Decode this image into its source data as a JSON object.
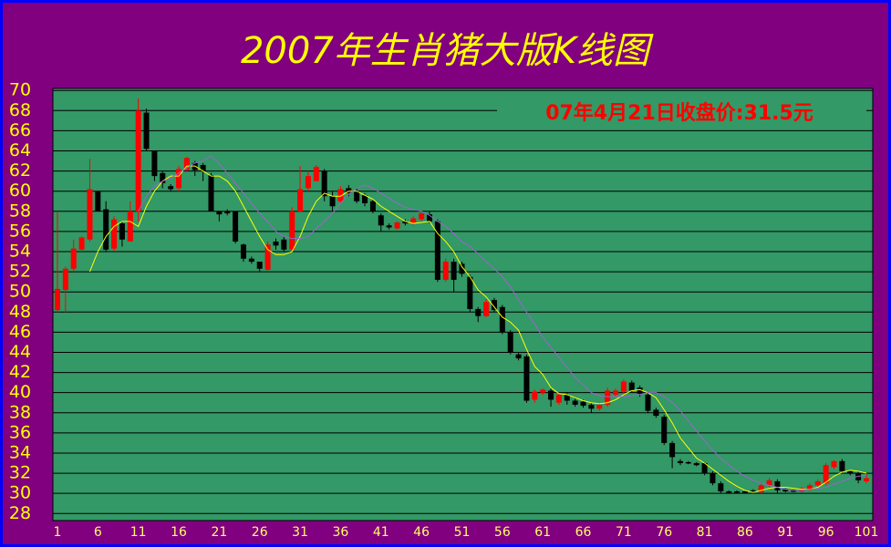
{
  "chart_data": {
    "type": "candlestick",
    "title": "2007年生肖猪大版K线图",
    "annotation": "07年4月21日收盘价:31.5元",
    "up_color": "#ff0000",
    "down_color": "#000000",
    "grid": true,
    "xlim": [
      0.44,
      101.79
    ],
    "xticks": [
      1,
      6,
      11,
      16,
      21,
      26,
      31,
      36,
      41,
      46,
      51,
      56,
      61,
      66,
      71,
      76,
      81,
      86,
      91,
      96,
      101
    ],
    "ylim": [
      27.3,
      70.2
    ],
    "yticks": [
      70,
      68,
      66,
      64,
      62,
      60,
      58,
      56,
      54,
      52,
      50,
      48,
      46,
      44,
      42,
      40,
      38,
      36,
      34,
      32,
      30,
      28
    ],
    "x": [
      1,
      2,
      3,
      4,
      5,
      6,
      7,
      8,
      9,
      10,
      11,
      12,
      13,
      14,
      15,
      16,
      17,
      18,
      19,
      20,
      21,
      22,
      23,
      24,
      25,
      26,
      27,
      28,
      29,
      30,
      31,
      32,
      33,
      34,
      35,
      36,
      37,
      38,
      39,
      40,
      41,
      42,
      43,
      44,
      45,
      46,
      47,
      48,
      49,
      50,
      51,
      52,
      53,
      54,
      55,
      56,
      57,
      58,
      59,
      60,
      61,
      62,
      63,
      64,
      65,
      66,
      67,
      68,
      69,
      70,
      71,
      72,
      73,
      74,
      75,
      76,
      77,
      78,
      79,
      80,
      81,
      82,
      83,
      84,
      85,
      86,
      87,
      88,
      89,
      90,
      91,
      92,
      93,
      94,
      95,
      96,
      97,
      98,
      99,
      100,
      101
    ],
    "open": [
      48.2,
      50.2,
      52.3,
      54.2,
      55.2,
      60,
      58.2,
      54.3,
      56.8,
      55,
      58,
      67.8,
      64,
      61.8,
      60.5,
      60.3,
      62.1,
      62.8,
      62.6,
      61.6,
      58,
      58,
      58,
      54.7,
      53.3,
      53,
      52.2,
      55,
      55.2,
      54.2,
      58,
      60.3,
      61,
      62,
      59.5,
      59,
      60.3,
      60,
      59.6,
      59,
      57.6,
      56.6,
      56.3,
      57,
      56.8,
      57.2,
      57.7,
      57,
      51.2,
      53,
      52.8,
      51.5,
      48.3,
      47.6,
      49.2,
      48.5,
      46,
      43.8,
      43.6,
      39.3,
      40,
      40.2,
      39,
      39.8,
      39.2,
      39.1,
      38.8,
      38.4,
      38.8,
      39.8,
      40.1,
      41,
      40.5,
      39.8,
      38.3,
      37.6,
      35,
      33.2,
      33.1,
      33,
      33,
      32,
      31,
      30.2,
      30.2,
      30.2,
      30.3,
      30.1,
      30.8,
      31.2,
      30.4,
      30.3,
      30.2,
      30.4,
      30.8,
      31,
      32.6,
      33.2,
      32.2,
      32,
      31.2
    ],
    "high": [
      58,
      52.5,
      55.2,
      55.5,
      63.2,
      60,
      59,
      57.5,
      57,
      59,
      69.2,
      68.2,
      64,
      62,
      60.7,
      62.5,
      63.4,
      63,
      62.8,
      61.8,
      58,
      58.2,
      58,
      54.8,
      53.5,
      53,
      55,
      55.3,
      55.5,
      58.4,
      62.5,
      62,
      62.6,
      62.2,
      60,
      60.5,
      60.6,
      60.3,
      59.8,
      59.2,
      57.8,
      56.8,
      57,
      57.2,
      57.5,
      58,
      58,
      57.2,
      53.3,
      53.3,
      53,
      51.7,
      48.5,
      49.3,
      49.4,
      48.7,
      46.2,
      44,
      43.8,
      40.3,
      40.4,
      40.4,
      40,
      40,
      39.4,
      39.3,
      39,
      39,
      40.5,
      40.4,
      41.3,
      41.2,
      40.7,
      40,
      38.5,
      37.8,
      35.2,
      33.4,
      33.2,
      33.1,
      33.1,
      32.2,
      31.2,
      30.3,
      30.3,
      30.3,
      30.4,
      31,
      31.5,
      31.4,
      30.5,
      30.4,
      30.6,
      31,
      31.4,
      33,
      33.3,
      33.4,
      32.3,
      32.2,
      32
    ],
    "low": [
      48,
      48,
      52,
      54,
      55,
      58,
      54,
      54,
      54.5,
      55,
      57,
      64,
      61,
      60.3,
      60,
      60,
      62,
      61.5,
      61,
      58,
      57,
      57.6,
      54.8,
      53,
      52.8,
      52,
      52,
      54.2,
      54,
      54,
      58,
      60,
      61,
      59,
      58,
      58.8,
      59.5,
      58.8,
      58.5,
      57.8,
      56,
      56.2,
      56.2,
      56.6,
      56.6,
      57,
      56.8,
      51,
      51,
      50,
      51.5,
      48,
      47,
      47.5,
      48,
      45.8,
      43.8,
      43.2,
      39,
      39,
      39.8,
      38.6,
      38.8,
      38.8,
      38.6,
      38.5,
      38,
      38.2,
      38.6,
      39.6,
      39.8,
      40,
      39.6,
      38,
      37.5,
      34.8,
      32.5,
      32.8,
      32.9,
      32.7,
      31.8,
      30.8,
      30,
      30,
      30,
      30,
      30,
      30,
      30.6,
      30,
      30.1,
      30.1,
      30.1,
      30.2,
      30.6,
      30.8,
      32.4,
      32,
      31.8,
      31,
      31
    ],
    "close": [
      50.3,
      52.3,
      54.3,
      55.4,
      60.2,
      58,
      54.2,
      57.2,
      55.2,
      58,
      68,
      64.2,
      61.5,
      60.8,
      60.2,
      62.2,
      63.3,
      62.1,
      62,
      58,
      57.7,
      57.8,
      55,
      53.3,
      53,
      52.3,
      54.7,
      54.6,
      54.2,
      58,
      60.2,
      61.5,
      62.4,
      59.5,
      58.5,
      60.2,
      59.8,
      59,
      58.8,
      58,
      56.6,
      56.4,
      56.9,
      56.8,
      57.3,
      57.8,
      57,
      51.2,
      53,
      51.2,
      51.8,
      48.3,
      47.6,
      49,
      48.2,
      46,
      44,
      43.4,
      39.2,
      40.1,
      40.3,
      39.3,
      39.8,
      39.2,
      38.8,
      38.7,
      38.4,
      38.8,
      40.2,
      40.2,
      41.1,
      40.2,
      39.9,
      38.2,
      37.7,
      35,
      33.6,
      33,
      33,
      32.8,
      32,
      31,
      30.2,
      30.1,
      30.1,
      30.1,
      30.1,
      30.8,
      31.3,
      30.3,
      30.2,
      30.2,
      30.5,
      30.8,
      31.2,
      32.8,
      33.2,
      32.2,
      32,
      31.3,
      31.5
    ],
    "series": [
      {
        "color": "#ffff00",
        "values": [
          null,
          null,
          null,
          null,
          52,
          54,
          55.5,
          56.5,
          57,
          57,
          56.5,
          58.5,
          60,
          61,
          61.5,
          61.5,
          62.5,
          62.5,
          62,
          61.5,
          61.5,
          61,
          60,
          58.5,
          57,
          55.5,
          54.2,
          53.7,
          53.7,
          54,
          55.5,
          57.5,
          59,
          59.8,
          59.5,
          59.5,
          60,
          60,
          59.6,
          59.2,
          58.5,
          58,
          57.5,
          57,
          56.8,
          56.9,
          57,
          55.8,
          55,
          54,
          52.5,
          51.5,
          50.2,
          49.5,
          48.5,
          47.5,
          47,
          46.2,
          44.3,
          42.6,
          41.8,
          40.5,
          39.9,
          39.8,
          39.5,
          39.2,
          39,
          38.9,
          39,
          39.3,
          39.8,
          40.2,
          40.3,
          40,
          39.5,
          38.3,
          37,
          35.5,
          34.5,
          33.5,
          33,
          32.4,
          31.8,
          31.2,
          30.7,
          30.3,
          30.1,
          30.3,
          30.5,
          30.6,
          30.6,
          30.5,
          30.4,
          30.4,
          30.6,
          31.1,
          31.7,
          32.1,
          32.3,
          32.2,
          32
        ]
      },
      {
        "color": "#9966cc",
        "values": [
          null,
          null,
          null,
          null,
          null,
          null,
          null,
          null,
          null,
          null,
          58,
          59.5,
          60.5,
          61,
          61.3,
          61.8,
          62.3,
          62.8,
          63,
          63.5,
          62.7,
          61.8,
          60.8,
          59.8,
          58.8,
          57.8,
          57,
          56,
          55.5,
          55.3,
          55.3,
          55.5,
          56.3,
          57,
          57.8,
          58.8,
          59.7,
          60.3,
          60.6,
          60.3,
          59.8,
          59.3,
          58.8,
          58.4,
          58.2,
          58,
          57.6,
          57,
          56.5,
          55.8,
          55,
          54.5,
          53.8,
          53,
          52.3,
          51.5,
          50.5,
          49.2,
          48,
          46.8,
          45.5,
          44.5,
          43.5,
          42.5,
          41.5,
          40.8,
          40,
          39.7,
          39.6,
          39.6,
          39.6,
          39.7,
          39.8,
          40,
          40,
          39.6,
          39,
          38.2,
          37.2,
          36.2,
          35.2,
          34.3,
          33.5,
          32.8,
          32.2,
          31.7,
          31.3,
          31,
          30.8,
          30.6,
          30.4,
          30.3,
          30.3,
          30.4,
          30.5,
          30.6,
          30.9,
          31.2,
          31.5,
          31.7,
          31.8
        ]
      }
    ]
  }
}
